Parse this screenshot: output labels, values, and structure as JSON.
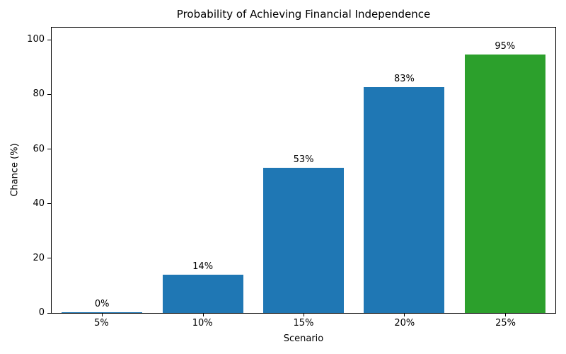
{
  "chart_data": {
    "type": "bar",
    "title": "Probability of Achieving Financial Independence",
    "xlabel": "Scenario",
    "ylabel": "Chance (%)",
    "categories": [
      "5%",
      "10%",
      "15%",
      "20%",
      "25%"
    ],
    "values": [
      0.3,
      14,
      53.5,
      83,
      95
    ],
    "bar_labels": [
      "0%",
      "14%",
      "53%",
      "83%",
      "95%"
    ],
    "bar_colors": [
      "#1f77b4",
      "#1f77b4",
      "#1f77b4",
      "#1f77b4",
      "#2ca02c"
    ],
    "yticks": [
      0,
      20,
      40,
      60,
      80,
      100
    ],
    "ylim": [
      0,
      105
    ],
    "grid": false,
    "legend_position": "none",
    "colors": {
      "bar_default": "#1f77b4",
      "bar_highlight": "#2ca02c",
      "axis": "#000000",
      "background": "#ffffff"
    }
  }
}
